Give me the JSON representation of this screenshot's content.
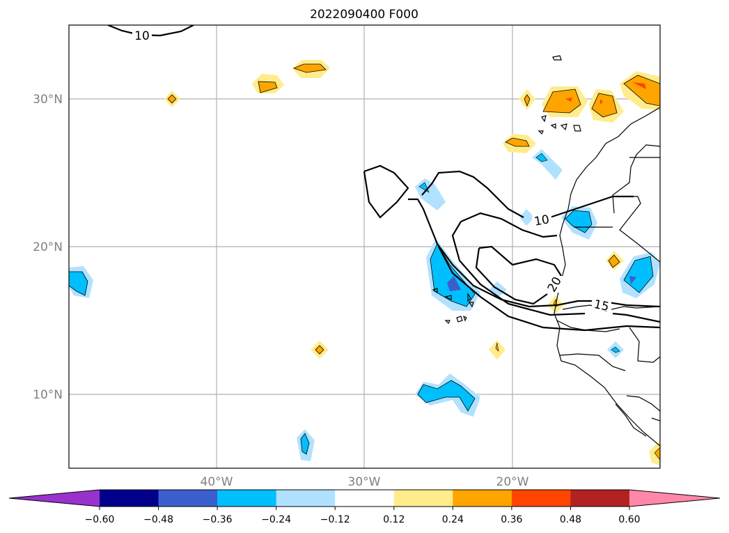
{
  "title": "2022090400 F000",
  "map": {
    "lon_range": [
      -50,
      -10
    ],
    "lat_range": [
      5,
      35
    ],
    "gridlines": true,
    "lon_ticks": [
      {
        "value": -40,
        "label": "40°W"
      },
      {
        "value": -30,
        "label": "30°W"
      },
      {
        "value": -20,
        "label": "20°W"
      }
    ],
    "lat_ticks": [
      {
        "value": 10,
        "label": "10°N"
      },
      {
        "value": 20,
        "label": "20°N"
      },
      {
        "value": 30,
        "label": "30°N"
      }
    ],
    "contour_labels": [
      "10",
      "10",
      "15",
      "20"
    ]
  },
  "colorbar": {
    "extend": "both",
    "levels": [
      -0.6,
      -0.48,
      -0.36,
      -0.24,
      -0.12,
      0.12,
      0.24,
      0.36,
      0.48,
      0.6
    ],
    "tick_labels": [
      "−0.60",
      "−0.48",
      "−0.36",
      "−0.24",
      "−0.12",
      "0.12",
      "0.24",
      "0.36",
      "0.48",
      "0.60"
    ],
    "colors": [
      "#9932cc",
      "#00008b",
      "#3a5fcd",
      "#00bfff",
      "#b0e2ff",
      "#ffffff",
      "#ffec8b",
      "#ffa500",
      "#ff4500",
      "#b22222",
      "#ff88aa"
    ]
  },
  "colors": {
    "axes": "#000000",
    "grid": "#b0b0b0",
    "tick_text": "#7f7f7f",
    "contour": "#000000"
  }
}
